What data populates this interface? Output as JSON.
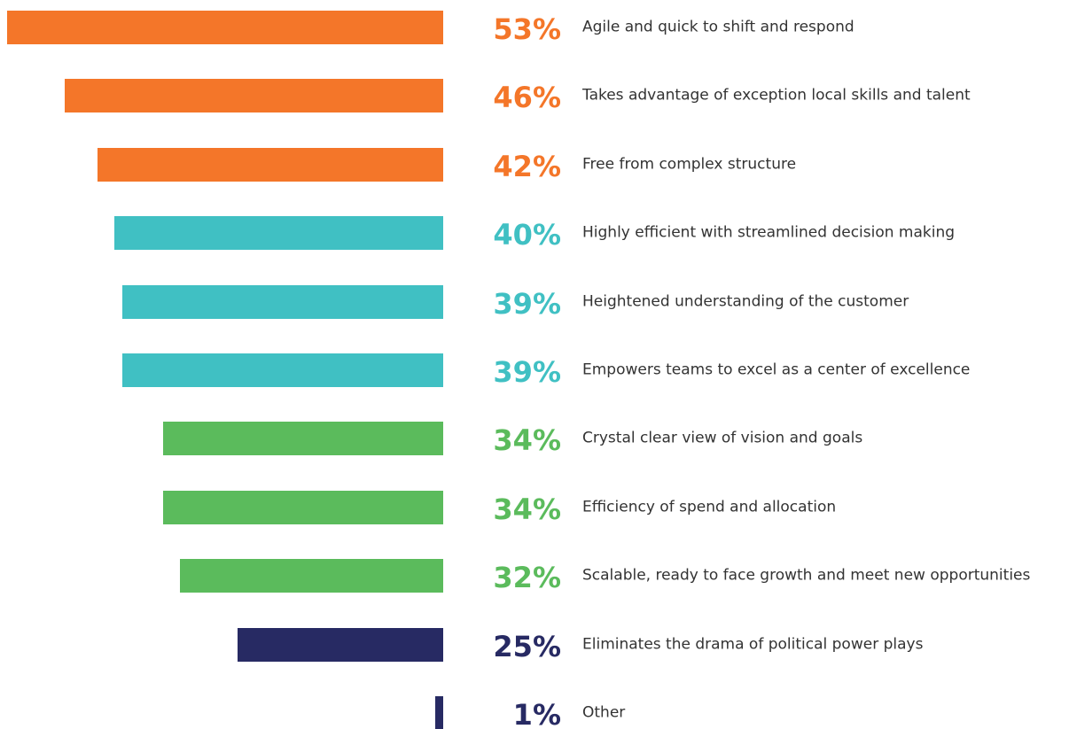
{
  "chart_data": {
    "type": "bar",
    "orientation": "horizontal",
    "categories": [
      "Agile and quick to shift and respond",
      "Takes advantage of exception local skills and talent",
      "Free from complex structure",
      "Highly efficient with streamlined decision making",
      "Heightened understanding of the customer",
      "Empowers teams to excel as a center of excellence",
      "Crystal clear view of vision and goals",
      "Efficiency of spend and allocation",
      "Scalable, ready to face growth and meet new opportunities",
      "Eliminates the drama of political power plays",
      "Other"
    ],
    "values": [
      53,
      46,
      42,
      40,
      39,
      39,
      34,
      34,
      32,
      25,
      1
    ],
    "value_labels": [
      "53%",
      "46%",
      "42%",
      "40%",
      "39%",
      "39%",
      "34%",
      "34%",
      "32%",
      "25%",
      "1%"
    ],
    "colors": [
      "#f47629",
      "#f47629",
      "#f47629",
      "#40c0c3",
      "#40c0c3",
      "#40c0c3",
      "#5bbb5c",
      "#5bbb5c",
      "#5bbb5c",
      "#272a63",
      "#272a63"
    ]
  }
}
